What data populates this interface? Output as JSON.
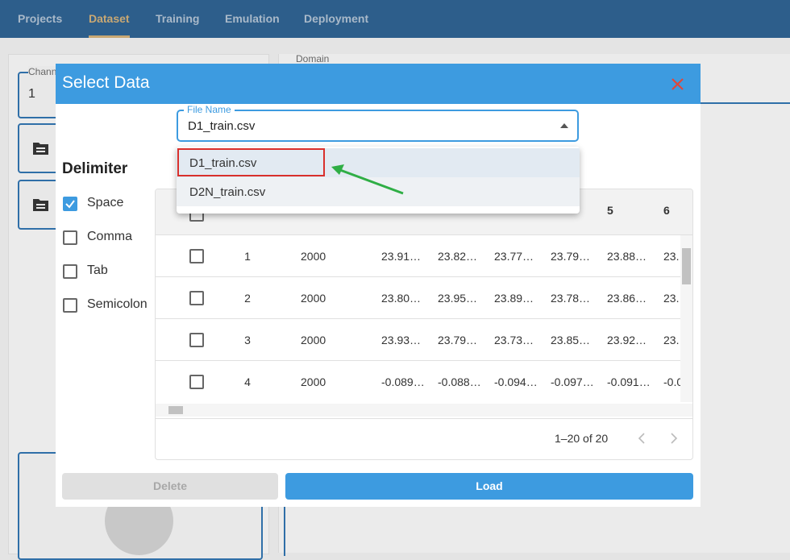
{
  "nav": {
    "tabs": [
      "Projects",
      "Dataset",
      "Training",
      "Emulation",
      "Deployment"
    ]
  },
  "background": {
    "channel_label": "Chann",
    "channel_value": "1",
    "domain_label": "Domain"
  },
  "dialog": {
    "title": "Select Data",
    "file_name": {
      "label": "File Name",
      "value": "D1_train.csv",
      "options": [
        "D1_train.csv",
        "D2N_train.csv"
      ]
    },
    "delimiter": {
      "heading": "Delimiter",
      "options": [
        {
          "label": "Space",
          "checked": true
        },
        {
          "label": "Comma",
          "checked": false
        },
        {
          "label": "Tab",
          "checked": false
        },
        {
          "label": "Semicolon",
          "checked": false
        }
      ]
    },
    "table": {
      "headers": [
        "5",
        "6"
      ],
      "rows": [
        [
          "1",
          "2000",
          "23.91…",
          "23.82…",
          "23.77…",
          "23.79…",
          "23.88…",
          "23."
        ],
        [
          "2",
          "2000",
          "23.80…",
          "23.95…",
          "23.89…",
          "23.78…",
          "23.86…",
          "23."
        ],
        [
          "3",
          "2000",
          "23.93…",
          "23.79…",
          "23.73…",
          "23.85…",
          "23.92…",
          "23."
        ],
        [
          "4",
          "2000",
          "-0.089…",
          "-0.088…",
          "-0.094…",
          "-0.097…",
          "-0.091…",
          "-0.0"
        ]
      ],
      "pagination": "1–20 of 20"
    },
    "buttons": {
      "delete": "Delete",
      "load": "Load"
    }
  }
}
